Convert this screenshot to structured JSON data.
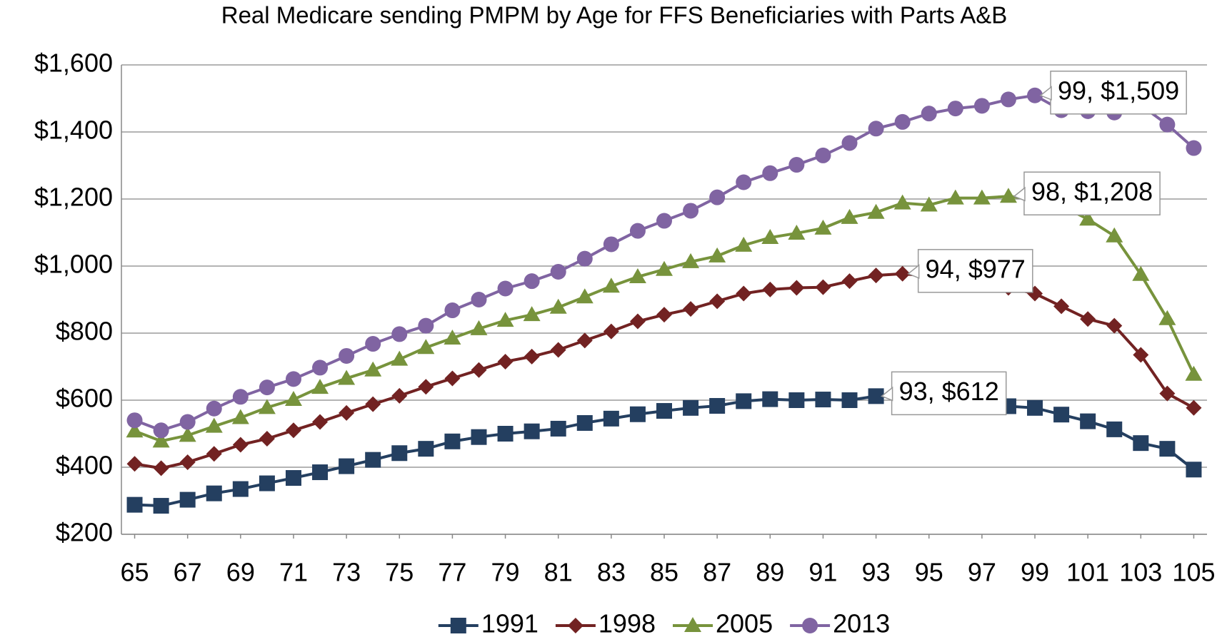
{
  "chart_data": {
    "type": "line",
    "title": "Real Medicare sending PMPM by Age for FFS Beneficiaries with Parts A&B",
    "x": [
      65,
      66,
      67,
      68,
      69,
      70,
      71,
      72,
      73,
      74,
      75,
      76,
      77,
      78,
      79,
      80,
      81,
      82,
      83,
      84,
      85,
      86,
      87,
      88,
      89,
      90,
      91,
      92,
      93,
      94,
      95,
      96,
      97,
      98,
      99,
      100,
      101,
      102,
      103,
      104,
      105
    ],
    "xlim": [
      64.5,
      105.5
    ],
    "xticks": [
      65,
      67,
      69,
      71,
      73,
      75,
      77,
      79,
      81,
      83,
      85,
      87,
      89,
      91,
      93,
      95,
      97,
      99,
      101,
      103,
      105
    ],
    "ylim": [
      200,
      1600
    ],
    "yticks": [
      {
        "value": 200,
        "label": "$200"
      },
      {
        "value": 400,
        "label": "$400"
      },
      {
        "value": 600,
        "label": "$600"
      },
      {
        "value": 800,
        "label": "$800"
      },
      {
        "value": 1000,
        "label": "$1,000"
      },
      {
        "value": 1200,
        "label": "$1,200"
      },
      {
        "value": 1400,
        "label": "$1,400"
      },
      {
        "value": 1600,
        "label": "$1,600"
      }
    ],
    "grid": true,
    "legend": "bottom",
    "series": [
      {
        "name": "1991",
        "color": "#243f60",
        "marker": "square",
        "values": [
          288,
          285,
          303,
          322,
          335,
          352,
          368,
          385,
          403,
          422,
          442,
          455,
          477,
          490,
          500,
          507,
          515,
          532,
          545,
          558,
          568,
          577,
          583,
          597,
          603,
          600,
          602,
          600,
          612,
          610,
          605,
          600,
          595,
          582,
          577,
          557,
          537,
          513,
          472,
          455,
          393
        ],
        "value_labels": [
          null,
          null,
          null,
          null,
          null,
          null,
          null,
          null,
          null,
          null,
          null,
          null,
          null,
          null,
          null,
          null,
          null,
          null,
          null,
          null,
          null,
          null,
          null,
          null,
          null,
          null,
          null,
          null,
          "93, $612",
          null,
          null,
          null,
          null,
          null,
          null,
          null,
          null,
          null,
          null,
          null,
          null
        ]
      },
      {
        "name": "1998",
        "color": "#722222",
        "marker": "diamond",
        "values": [
          410,
          397,
          415,
          440,
          467,
          485,
          510,
          535,
          562,
          588,
          613,
          640,
          665,
          690,
          715,
          730,
          750,
          778,
          805,
          835,
          855,
          872,
          895,
          918,
          930,
          935,
          937,
          955,
          972,
          977,
          970,
          960,
          950,
          935,
          918,
          880,
          842,
          822,
          735,
          620,
          577
        ],
        "value_labels": [
          null,
          null,
          null,
          null,
          null,
          null,
          null,
          null,
          null,
          null,
          null,
          null,
          null,
          null,
          null,
          null,
          null,
          null,
          null,
          null,
          null,
          null,
          null,
          null,
          null,
          null,
          null,
          null,
          null,
          "94, $977",
          null,
          null,
          null,
          null,
          null,
          null,
          null,
          null,
          null,
          null,
          null
        ]
      },
      {
        "name": "2005",
        "color": "#77933c",
        "marker": "triangle",
        "values": [
          508,
          478,
          495,
          522,
          548,
          578,
          602,
          638,
          665,
          690,
          722,
          757,
          785,
          813,
          838,
          855,
          877,
          908,
          940,
          968,
          990,
          1013,
          1030,
          1062,
          1085,
          1098,
          1113,
          1145,
          1160,
          1188,
          1182,
          1203,
          1203,
          1208,
          1200,
          1180,
          1140,
          1090,
          975,
          843,
          677
        ],
        "value_labels": [
          null,
          null,
          null,
          null,
          null,
          null,
          null,
          null,
          null,
          null,
          null,
          null,
          null,
          null,
          null,
          null,
          null,
          null,
          null,
          null,
          null,
          null,
          null,
          null,
          null,
          null,
          null,
          null,
          null,
          null,
          null,
          null,
          null,
          "98, $1,208",
          null,
          null,
          null,
          null,
          null,
          null,
          null
        ]
      },
      {
        "name": "2013",
        "color": "#8064a2",
        "marker": "circle",
        "values": [
          540,
          510,
          535,
          575,
          610,
          638,
          663,
          697,
          732,
          768,
          797,
          822,
          868,
          900,
          933,
          955,
          983,
          1022,
          1065,
          1105,
          1135,
          1165,
          1205,
          1250,
          1277,
          1302,
          1330,
          1367,
          1410,
          1430,
          1455,
          1470,
          1478,
          1497,
          1509,
          1465,
          1462,
          1458,
          1480,
          1422,
          1352
        ],
        "value_labels": [
          null,
          null,
          null,
          null,
          null,
          null,
          null,
          null,
          null,
          null,
          null,
          null,
          null,
          null,
          null,
          null,
          null,
          null,
          null,
          null,
          null,
          null,
          null,
          null,
          null,
          null,
          null,
          null,
          null,
          null,
          null,
          null,
          null,
          null,
          "99, $1,509",
          null,
          null,
          null,
          null,
          null,
          null
        ]
      }
    ]
  }
}
